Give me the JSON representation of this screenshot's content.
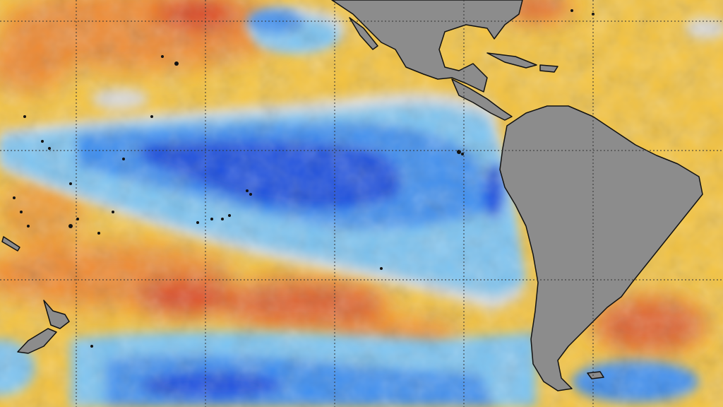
{
  "map": {
    "kind": "sea surface temperature anomaly",
    "colors": {
      "land": "#8c8c8c",
      "coastline": "#111111",
      "warm_strong": "#d9452b",
      "warm": "#f08a2e",
      "warm_mild": "#f7c942",
      "neutral": "#dcdcdc",
      "cool_mild": "#7cc4f2",
      "cool": "#3d8ef0",
      "cool_strong": "#1f4fe0",
      "gridline": "#333333"
    },
    "gridlines": {
      "style": "dotted",
      "vertical_count": 5,
      "horizontal_count": 3
    }
  }
}
